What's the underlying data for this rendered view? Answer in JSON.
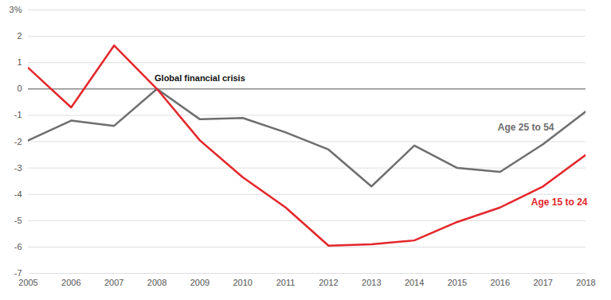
{
  "chart_data": {
    "type": "line",
    "x": [
      2005,
      2006,
      2007,
      2008,
      2009,
      2010,
      2011,
      2012,
      2013,
      2014,
      2015,
      2016,
      2017,
      2018
    ],
    "series": [
      {
        "name": "Age 25 to 54",
        "color": "#6e6e6e",
        "values": [
          -1.95,
          -1.2,
          -1.4,
          0,
          -1.15,
          -1.1,
          -1.65,
          -2.3,
          -3.7,
          -2.15,
          -3.0,
          -3.15,
          -2.1,
          -0.85
        ]
      },
      {
        "name": "Age 15 to 24",
        "color": "#e3262b",
        "values": [
          0.8,
          -0.7,
          1.65,
          0,
          -1.95,
          -3.35,
          -4.5,
          -5.95,
          -5.9,
          -5.75,
          -5.05,
          -4.5,
          -3.7,
          -2.5
        ]
      }
    ],
    "annotations": [
      {
        "text": "Global financial crisis",
        "x": 2008,
        "y": 0
      }
    ],
    "xlim": [
      2005,
      2018
    ],
    "xticks": [
      2005,
      2006,
      2007,
      2008,
      2009,
      2010,
      2011,
      2012,
      2013,
      2014,
      2015,
      2016,
      2017,
      2018
    ],
    "ylim": [
      -7,
      3
    ],
    "yticks": [
      -7,
      -6,
      -5,
      -4,
      -3,
      -2,
      -1,
      0,
      1,
      2,
      {
        "value": 3,
        "label": "3%"
      }
    ],
    "grid": true
  }
}
